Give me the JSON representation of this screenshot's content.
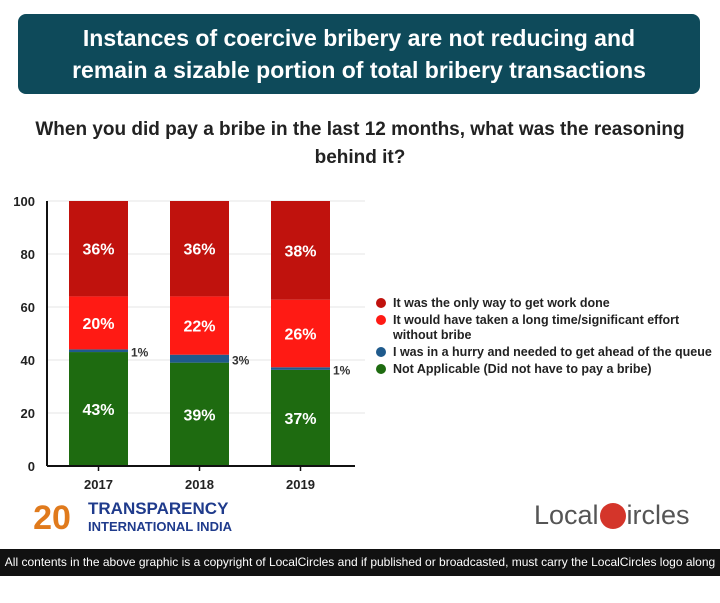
{
  "banner": {
    "title": "Instances of coercive bribery are not reducing and remain a sizable portion of total bribery transactions"
  },
  "question": "When you did pay a bribe in the last 12 months, what was the reasoning behind it?",
  "chart_data": {
    "type": "bar",
    "stacked": true,
    "categories": [
      "2017",
      "2018",
      "2019"
    ],
    "ylim": [
      0,
      100
    ],
    "yticks": [
      "0",
      "20",
      "40",
      "60",
      "80",
      "100"
    ],
    "grid": true,
    "legend_position": "right",
    "series": [
      {
        "name": "Not Applicable (Did not have to pay a bribe)",
        "values": [
          43,
          39,
          37
        ],
        "labels": [
          "43%",
          "39%",
          "37%"
        ],
        "color": "#1e6b10"
      },
      {
        "name": "I was in a hurry and needed to get ahead of the queue",
        "values": [
          1,
          3,
          1
        ],
        "labels": [
          "1%",
          "3%",
          "1%"
        ],
        "color": "#1f5a8c"
      },
      {
        "name": "It would have taken a long time/significant effort without bribe",
        "values": [
          20,
          22,
          26
        ],
        "labels": [
          "20%",
          "22%",
          "26%"
        ],
        "color": "#ff1a14"
      },
      {
        "name": "It was the only way to get work done",
        "values": [
          36,
          36,
          38
        ],
        "labels": [
          "36%",
          "36%",
          "38%"
        ],
        "color": "#c0120d"
      }
    ]
  },
  "legend": [
    {
      "label": "It was the only way to get work done",
      "color": "#c0120d"
    },
    {
      "label": "It would have taken a long time/significant effort without bribe",
      "color": "#ff1a14"
    },
    {
      "label": "I was in a hurry and needed to get ahead of the queue",
      "color": "#1f5a8c"
    },
    {
      "label": "Not Applicable (Did not have to pay a bribe)",
      "color": "#1e6b10"
    }
  ],
  "logos": {
    "ti_line1": "TRANSPARENCY",
    "ti_line2": "INTERNATIONAL INDIA",
    "ti_badge": "20",
    "localcircles_left": "Local",
    "localcircles_right": "ircles"
  },
  "footer": "All contents in the above graphic is a copyright of LocalCircles and if published or broadcasted, must carry the LocalCircles logo along with it."
}
